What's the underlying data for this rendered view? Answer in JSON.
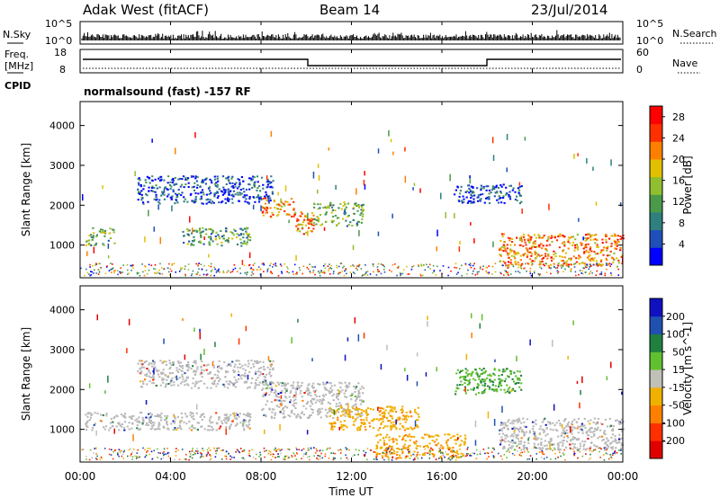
{
  "header": {
    "site": "Adak West (fitACF)",
    "beam": "Beam 14",
    "date": "23/Jul/2014"
  },
  "panels": {
    "nsky": {
      "label": "N.Sky",
      "ticks": [
        "10^5",
        "10^0"
      ]
    },
    "nsearch": {
      "label": "N.Search",
      "ticks": [
        "10^5",
        "10^0"
      ]
    },
    "freq": {
      "label_line1": "Freq.",
      "label_line2": "[MHz]",
      "ticks": [
        "18",
        "8"
      ]
    },
    "nave": {
      "label": "Nave",
      "ticks": [
        "60",
        "0"
      ]
    },
    "cpid": {
      "label": "CPID",
      "text": "normalsound (fast) -157 RF"
    }
  },
  "colors": {
    "power": [
      "#0000ff",
      "#1f4fb8",
      "#2f7f7f",
      "#4a9a4a",
      "#8fbf2f",
      "#e0c000",
      "#ff8000",
      "#ff3000",
      "#ff0000"
    ],
    "velocity": [
      "#1010c0",
      "#2050b0",
      "#208040",
      "#60c030",
      "#c0c0b8",
      "#f0b000",
      "#ff8000",
      "#ff3000",
      "#e00000"
    ],
    "ground_scatter": "#b8b8b8"
  },
  "chart_data": [
    {
      "type": "heatmap",
      "title": "",
      "xlabel": "Time UT",
      "ylabel": "Slant Range [km]",
      "x_ticks": [
        "00:00",
        "04:00",
        "08:00",
        "12:00",
        "16:00",
        "20:00",
        "00:00"
      ],
      "y_ticks": [
        "1000",
        "2000",
        "3000",
        "4000"
      ],
      "xlim_hours": [
        0,
        24
      ],
      "ylim_km": [
        180,
        4600
      ],
      "colorbar": {
        "label": "Power [dB]",
        "ticks": [
          "4",
          "8",
          "12",
          "16",
          "20",
          "24",
          "28"
        ],
        "range": [
          0,
          30
        ]
      },
      "echo_regions": [
        {
          "t": [
            2.5,
            8.5
          ],
          "r": [
            2050,
            2750
          ],
          "level": "weak"
        },
        {
          "t": [
            8.0,
            9.5
          ],
          "r": [
            1700,
            2200
          ],
          "level": "strong"
        },
        {
          "t": [
            9.5,
            10.3
          ],
          "r": [
            1300,
            1900
          ],
          "level": "strong"
        },
        {
          "t": [
            10.3,
            12.5
          ],
          "r": [
            1500,
            2100
          ],
          "level": "moderate"
        },
        {
          "t": [
            0.2,
            1.5
          ],
          "r": [
            1000,
            1450
          ],
          "level": "moderate"
        },
        {
          "t": [
            4.5,
            7.5
          ],
          "r": [
            1000,
            1450
          ],
          "level": "moderate"
        },
        {
          "t": [
            16.5,
            19.5
          ],
          "r": [
            2050,
            2550
          ],
          "level": "weak"
        },
        {
          "t": [
            18.5,
            24.0
          ],
          "r": [
            500,
            1300
          ],
          "level": "strong"
        }
      ]
    },
    {
      "type": "heatmap",
      "title": "",
      "xlabel": "Time UT",
      "ylabel": "Slant Range [km]",
      "x_ticks": [
        "00:00",
        "04:00",
        "08:00",
        "12:00",
        "16:00",
        "20:00",
        "00:00"
      ],
      "y_ticks": [
        "1000",
        "2000",
        "3000",
        "4000"
      ],
      "xlim_hours": [
        0,
        24
      ],
      "ylim_km": [
        180,
        4600
      ],
      "colorbar": {
        "label": "Velocity [m s^-1]",
        "ticks": [
          "200",
          "100",
          "50",
          "15",
          "-15",
          "-50",
          "-100",
          "-200"
        ],
        "range": [
          -250,
          250
        ]
      },
      "echo_regions": [
        {
          "t": [
            2.5,
            8.5
          ],
          "r": [
            2050,
            2750
          ],
          "level": "ground"
        },
        {
          "t": [
            8.0,
            12.5
          ],
          "r": [
            1300,
            2200
          ],
          "level": "ground"
        },
        {
          "t": [
            11.0,
            15.0
          ],
          "r": [
            1000,
            1600
          ],
          "level": "negative"
        },
        {
          "t": [
            0.2,
            7.5
          ],
          "r": [
            1000,
            1450
          ],
          "level": "ground"
        },
        {
          "t": [
            13.0,
            17.0
          ],
          "r": [
            300,
            900
          ],
          "level": "negative"
        },
        {
          "t": [
            16.5,
            19.5
          ],
          "r": [
            1900,
            2550
          ],
          "level": "positive"
        },
        {
          "t": [
            18.5,
            24.0
          ],
          "r": [
            500,
            1300
          ],
          "level": "ground"
        }
      ]
    }
  ]
}
